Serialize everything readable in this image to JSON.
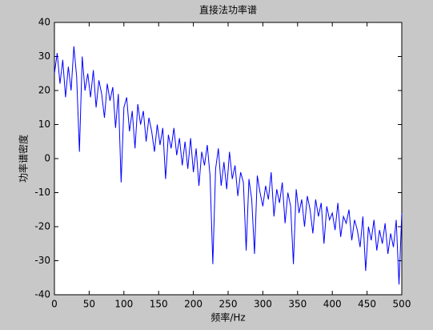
{
  "chart_data": {
    "type": "line",
    "title": "直接法功率谱",
    "x_label": "频率/Hz",
    "y_label": "功率谱密度",
    "x": [
      0,
      4,
      8,
      12,
      16,
      20,
      24,
      28,
      32,
      36,
      40,
      44,
      48,
      52,
      56,
      60,
      64,
      68,
      72,
      76,
      80,
      84,
      88,
      92,
      96,
      100,
      104,
      108,
      112,
      116,
      120,
      124,
      128,
      132,
      136,
      140,
      144,
      148,
      152,
      156,
      160,
      164,
      168,
      172,
      176,
      180,
      184,
      188,
      192,
      196,
      200,
      204,
      208,
      212,
      216,
      220,
      224,
      228,
      232,
      236,
      240,
      244,
      248,
      252,
      256,
      260,
      264,
      268,
      272,
      276,
      280,
      284,
      288,
      292,
      296,
      300,
      304,
      308,
      312,
      316,
      320,
      324,
      328,
      332,
      336,
      340,
      344,
      348,
      352,
      356,
      360,
      364,
      368,
      372,
      376,
      380,
      384,
      388,
      392,
      396,
      400,
      404,
      408,
      412,
      416,
      420,
      424,
      428,
      432,
      436,
      440,
      444,
      448,
      452,
      456,
      460,
      464,
      468,
      472,
      476,
      480,
      484,
      488,
      492,
      496,
      500
    ],
    "series": [
      {
        "color": "#0000ff",
        "values": [
          25,
          31,
          22,
          29,
          18,
          27,
          20,
          33,
          24,
          2,
          30,
          20,
          25,
          18,
          26,
          15,
          23,
          19,
          12,
          22,
          17,
          21,
          9,
          19,
          -7,
          15,
          18,
          8,
          14,
          3,
          16,
          10,
          14,
          5,
          12,
          8,
          2,
          10,
          4,
          9,
          -6,
          7,
          3,
          9,
          1,
          6,
          -2,
          5,
          -3,
          6,
          -4,
          3,
          -8,
          2,
          -2,
          4,
          -5,
          -31,
          -3,
          3,
          -8,
          -1,
          -9,
          2,
          -6,
          -2,
          -11,
          -4,
          -7,
          -27,
          -6,
          -12,
          -28,
          -5,
          -10,
          -14,
          -8,
          -12,
          -4,
          -17,
          -9,
          -13,
          -7,
          -19,
          -10,
          -14,
          -31,
          -9,
          -16,
          -12,
          -20,
          -11,
          -15,
          -22,
          -12,
          -17,
          -13,
          -25,
          -14,
          -18,
          -16,
          -21,
          -13,
          -23,
          -17,
          -19,
          -15,
          -24,
          -18,
          -21,
          -26,
          -17,
          -33,
          -20,
          -24,
          -18,
          -27,
          -21,
          -25,
          -19,
          -28,
          -22,
          -26,
          -18,
          -37,
          -16
        ]
      }
    ],
    "xlim": [
      0,
      500
    ],
    "xticks": [
      0,
      50,
      100,
      150,
      200,
      250,
      300,
      350,
      400,
      450,
      500
    ],
    "ylim": [
      -40,
      40
    ],
    "yticks": [
      -40,
      -30,
      -20,
      -10,
      0,
      10,
      20,
      30,
      40
    ]
  }
}
